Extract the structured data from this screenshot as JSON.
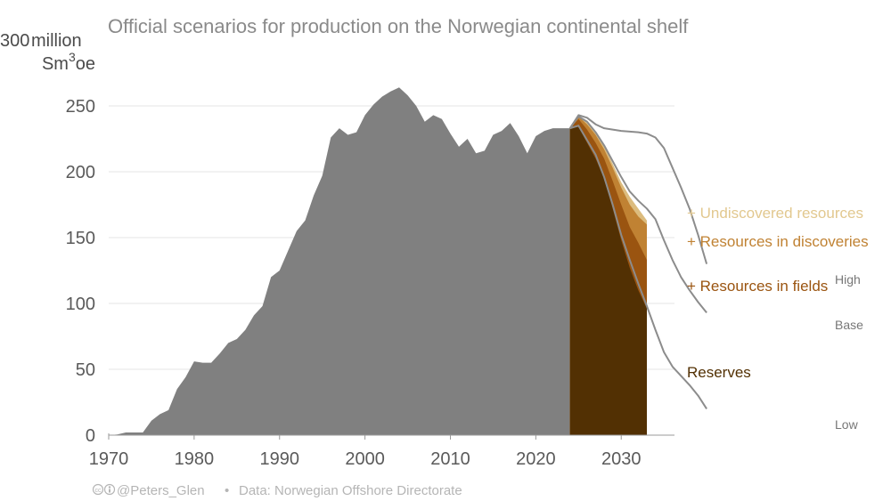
{
  "chart_data": {
    "type": "area",
    "title": "Official scenarios for production on the Norwegian continental shelf",
    "ylabel": "million Sm³oe",
    "ylabel_top_tick": "300",
    "ylim": [
      0,
      300
    ],
    "xlim": [
      1970,
      2033
    ],
    "x_ticks": [
      1970,
      1980,
      1990,
      2000,
      2010,
      2020,
      2030
    ],
    "y_ticks": [
      0,
      50,
      100,
      150,
      200,
      250
    ],
    "grid": "horizontal",
    "historical": {
      "x": [
        1970,
        1971,
        1972,
        1973,
        1974,
        1975,
        1976,
        1977,
        1978,
        1979,
        1980,
        1981,
        1982,
        1983,
        1984,
        1985,
        1986,
        1987,
        1988,
        1989,
        1990,
        1991,
        1992,
        1993,
        1994,
        1995,
        1996,
        1997,
        1998,
        1999,
        2000,
        2001,
        2002,
        2003,
        2004,
        2005,
        2006,
        2007,
        2008,
        2009,
        2010,
        2011,
        2012,
        2013,
        2014,
        2015,
        2016,
        2017,
        2018,
        2019,
        2020,
        2021,
        2022,
        2023,
        2024
      ],
      "values": [
        0,
        0.5,
        2,
        2,
        2,
        11,
        16,
        19,
        35,
        44,
        56,
        55,
        55,
        62,
        70,
        73,
        80,
        91,
        98,
        120,
        125,
        140,
        155,
        163,
        182,
        197,
        226,
        233,
        228,
        230,
        243,
        251,
        257,
        261,
        264,
        258,
        250,
        238,
        243,
        240,
        229,
        219,
        225,
        214,
        216,
        228,
        231,
        237,
        227,
        214,
        227,
        231,
        233,
        233,
        233
      ],
      "color": "#808080"
    },
    "forecast": {
      "x": [
        2024,
        2025,
        2026,
        2027,
        2028,
        2029,
        2030,
        2031,
        2032,
        2033
      ],
      "series": [
        {
          "name": "Reserves",
          "values": [
            233,
            234,
            222,
            210,
            195,
            172,
            148,
            127,
            110,
            96
          ],
          "color": "#523003",
          "label_color": "#523003"
        },
        {
          "name": "+ Resources in fields",
          "values": [
            233,
            240,
            232,
            222,
            210,
            193,
            175,
            158,
            146,
            133
          ],
          "color": "#9a5410",
          "label_color": "#9a5410"
        },
        {
          "name": "+ Resources in discoveries",
          "values": [
            233,
            242,
            236,
            228,
            217,
            203,
            188,
            175,
            166,
            160
          ],
          "color": "#c08233",
          "label_color": "#c08233"
        },
        {
          "name": "+ Undiscovered resources",
          "values": [
            233,
            243,
            237,
            230,
            220,
            206,
            192,
            181,
            172,
            163
          ],
          "color": "#dcbc7e",
          "label_color": "#e2c88f"
        }
      ]
    },
    "scenarios": [
      {
        "name": "High",
        "x": [
          2024,
          2025,
          2026,
          2027,
          2028,
          2030,
          2032,
          2033,
          2034,
          2035,
          2036,
          2037,
          2038,
          2039,
          2040
        ],
        "values": [
          233,
          243,
          241,
          236,
          233,
          231,
          230,
          229,
          226,
          218,
          203,
          188,
          172,
          152,
          130
        ]
      },
      {
        "name": "Base",
        "x": [
          2024,
          2025,
          2026,
          2027,
          2028,
          2029,
          2030,
          2031,
          2032,
          2033,
          2034,
          2035,
          2036,
          2037,
          2038,
          2039,
          2040
        ],
        "values": [
          233,
          242,
          238,
          230,
          220,
          208,
          196,
          185,
          178,
          172,
          164,
          148,
          133,
          120,
          110,
          101,
          93
        ]
      },
      {
        "name": "Low",
        "x": [
          2024,
          2025,
          2026,
          2027,
          2028,
          2029,
          2030,
          2031,
          2032,
          2033,
          2034,
          2035,
          2036,
          2037,
          2038,
          2039,
          2040
        ],
        "values": [
          233,
          235,
          224,
          213,
          196,
          175,
          152,
          133,
          115,
          98,
          80,
          63,
          52,
          45,
          38,
          30,
          20
        ]
      }
    ],
    "scenario_line_color": "#8c8c8c"
  },
  "credit": {
    "icons": "cc-by-icons",
    "author": "@Peters_Glen",
    "separator": "•",
    "source": "Data: Norwegian Offshore Directorate"
  }
}
